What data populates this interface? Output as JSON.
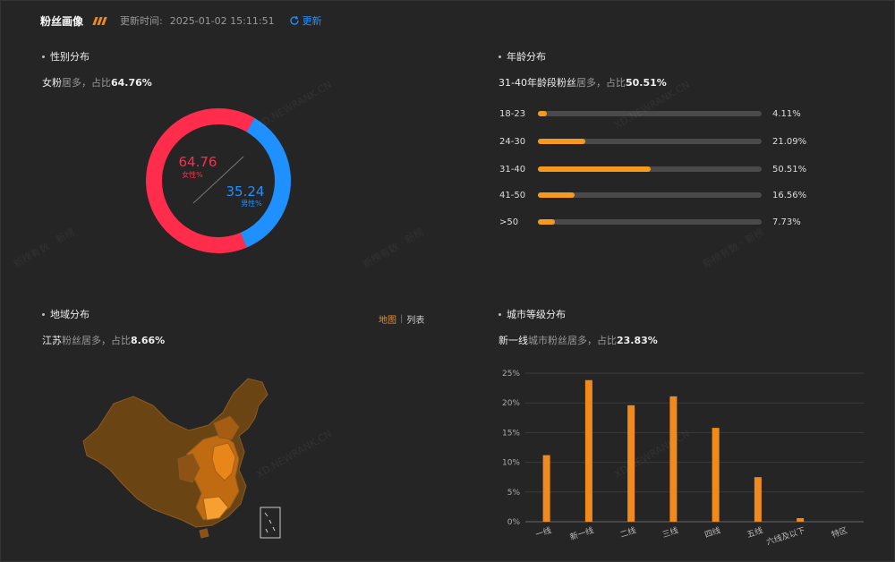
{
  "header": {
    "title": "粉丝画像",
    "update_label": "更新时间:",
    "update_time": "2025-01-02 15:11:51",
    "refresh_label": "更新"
  },
  "gender": {
    "title": "性别分布",
    "summary_lead": "女粉",
    "summary_mid": "居多，占比",
    "summary_value": "64.76%",
    "female_value": "64.76",
    "female_label": "女性%",
    "male_value": "35.24",
    "male_label": "男性%",
    "female_pct": 64.76,
    "male_pct": 35.24,
    "female_color": "#ff2d4b",
    "male_color": "#1e90ff"
  },
  "age": {
    "title": "年龄分布",
    "summary_lead": "31-40年龄段粉丝",
    "summary_mid": "居多，占比",
    "summary_value": "50.51%",
    "rows": [
      {
        "label": "18-23",
        "value": "4.11%",
        "pct": 4.11
      },
      {
        "label": "24-30",
        "value": "21.09%",
        "pct": 21.09
      },
      {
        "label": "31-40",
        "value": "50.51%",
        "pct": 50.51
      },
      {
        "label": "41-50",
        "value": "16.56%",
        "pct": 16.56
      },
      {
        "label": ">50",
        "value": "7.73%",
        "pct": 7.73
      }
    ],
    "bar_color": "#f59a1e"
  },
  "region": {
    "title": "地域分布",
    "summary_lead": "江苏",
    "summary_mid": "粉丝居多，占比",
    "summary_value": "8.66%",
    "tab_map": "地图",
    "tab_separator": "|",
    "tab_list": "列表"
  },
  "city": {
    "title": "城市等级分布",
    "summary_lead": "新一线",
    "summary_mid": "城市粉丝居多，占比",
    "summary_value": "23.83%"
  },
  "watermark": {
    "text_en": "XD.NEWRANK.CN",
    "text_cn": "新榜有数 · 新榜"
  },
  "chart_data": {
    "type": "bar",
    "categories": [
      "一线",
      "新一线",
      "二线",
      "三线",
      "四线",
      "五线",
      "六线及以下",
      "特区"
    ],
    "values": [
      11.2,
      23.83,
      19.6,
      21.1,
      15.8,
      7.5,
      0.6,
      0
    ],
    "ylim": [
      0,
      25
    ],
    "yticks": [
      "0%",
      "5%",
      "10%",
      "15%",
      "20%",
      "25%"
    ],
    "ytick_values": [
      0,
      5,
      10,
      15,
      20,
      25
    ],
    "grid": true,
    "bar_color": "#f08a1c"
  }
}
